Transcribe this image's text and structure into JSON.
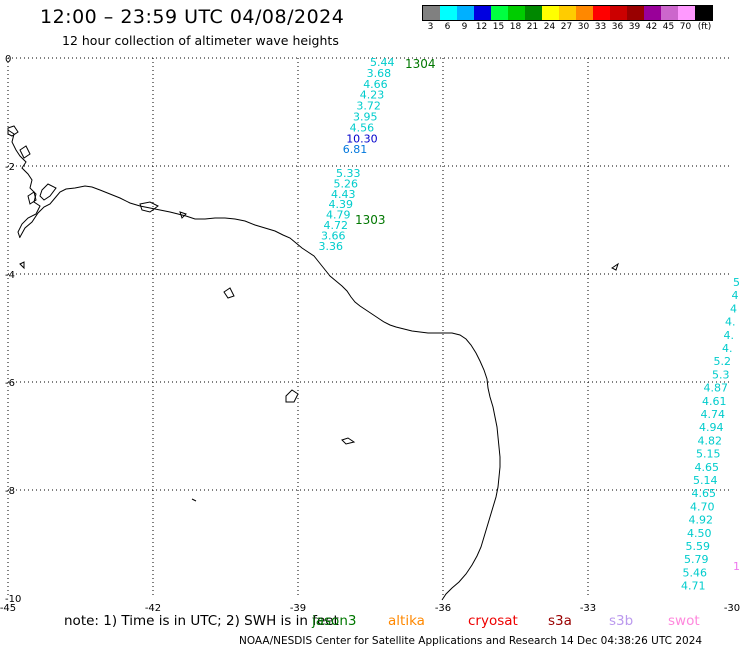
{
  "header": {
    "title": "12:00 – 23:59 UTC 04/08/2024",
    "subtitle": "12 hour collection of altimeter wave heights"
  },
  "colorbar": {
    "colors": [
      "#808080",
      "#00ffff",
      "#00b0ff",
      "#0000e0",
      "#00ff40",
      "#00cc00",
      "#008800",
      "#ffff00",
      "#ffcc00",
      "#ff8800",
      "#ff0000",
      "#cc0000",
      "#990000",
      "#990099",
      "#cc66cc",
      "#ff99ff",
      "#000000"
    ],
    "labels": [
      "3",
      "6",
      "9",
      "12",
      "15",
      "18",
      "21",
      "24",
      "27",
      "30",
      "33",
      "36",
      "39",
      "42",
      "45",
      "70",
      "(ft)"
    ]
  },
  "axes": {
    "x_ticks": [
      "-45",
      "-42",
      "-39",
      "-36",
      "-33",
      "-30"
    ],
    "y_ticks": [
      "0",
      "-2",
      "-4",
      "-6",
      "-8",
      "-10"
    ]
  },
  "passes": [
    {
      "id": "1304",
      "color": "#007700"
    },
    {
      "id": "1303",
      "color": "#007700"
    }
  ],
  "track_values": {
    "pass1304": [
      {
        "v": "5.44",
        "c": "#00cccc"
      },
      {
        "v": "3.68",
        "c": "#00cccc"
      },
      {
        "v": "4.66",
        "c": "#00cccc"
      },
      {
        "v": "4.23",
        "c": "#00cccc"
      },
      {
        "v": "3.72",
        "c": "#00cccc"
      },
      {
        "v": "3.95",
        "c": "#00cccc"
      },
      {
        "v": "4.56",
        "c": "#00cccc"
      },
      {
        "v": "10.30",
        "c": "#0000cc"
      },
      {
        "v": "6.81",
        "c": "#0077dd"
      }
    ],
    "pass1303": [
      {
        "v": "5.33",
        "c": "#00cccc"
      },
      {
        "v": "5.26",
        "c": "#00cccc"
      },
      {
        "v": "4.43",
        "c": "#00cccc"
      },
      {
        "v": "4.39",
        "c": "#00cccc"
      },
      {
        "v": "4.79",
        "c": "#00cccc"
      },
      {
        "v": "4.72",
        "c": "#00cccc"
      },
      {
        "v": "3.66",
        "c": "#00cccc"
      },
      {
        "v": "3.36",
        "c": "#00cccc"
      }
    ],
    "right_edge": [
      {
        "v": "5",
        "c": "#00cccc"
      },
      {
        "v": "4",
        "c": "#00cccc"
      },
      {
        "v": "4",
        "c": "#00cccc"
      },
      {
        "v": "4.",
        "c": "#00cccc"
      },
      {
        "v": "4.",
        "c": "#00cccc"
      },
      {
        "v": "4.",
        "c": "#00cccc"
      },
      {
        "v": "5.2",
        "c": "#00cccc"
      },
      {
        "v": "5.3",
        "c": "#00cccc"
      },
      {
        "v": "4.87",
        "c": "#00cccc"
      },
      {
        "v": "4.61",
        "c": "#00cccc"
      },
      {
        "v": "4.74",
        "c": "#00cccc"
      },
      {
        "v": "4.94",
        "c": "#00cccc"
      },
      {
        "v": "4.82",
        "c": "#00cccc"
      },
      {
        "v": "5.15",
        "c": "#00cccc"
      },
      {
        "v": "4.65",
        "c": "#00cccc"
      },
      {
        "v": "5.14",
        "c": "#00cccc"
      },
      {
        "v": "4.65",
        "c": "#00cccc"
      },
      {
        "v": "4.70",
        "c": "#00cccc"
      },
      {
        "v": "4.92",
        "c": "#00cccc"
      },
      {
        "v": "4.50",
        "c": "#00cccc"
      },
      {
        "v": "5.59",
        "c": "#00cccc"
      },
      {
        "v": "5.79",
        "c": "#00cccc"
      },
      {
        "v": "5.46",
        "c": "#00cccc"
      },
      {
        "v": "4.71",
        "c": "#00cccc"
      }
    ],
    "right_edge_pass": {
      "v": "1",
      "c": "#ee77ee"
    }
  },
  "footer": {
    "note": "note:  1) Time is in UTC;  2) SWH is in feet",
    "satellites": [
      {
        "name": "jason3",
        "color": "#007700"
      },
      {
        "name": "altika",
        "color": "#ff8800"
      },
      {
        "name": "cryosat",
        "color": "#ee0000"
      },
      {
        "name": "s3a",
        "color": "#990000"
      },
      {
        "name": "s3b",
        "color": "#bb99ee"
      },
      {
        "name": "swot",
        "color": "#ff88dd"
      }
    ],
    "credit": "NOAA/NESDIS Center for Satellite Applications and Research    14 Dec 04:38:26 UTC 2024"
  }
}
